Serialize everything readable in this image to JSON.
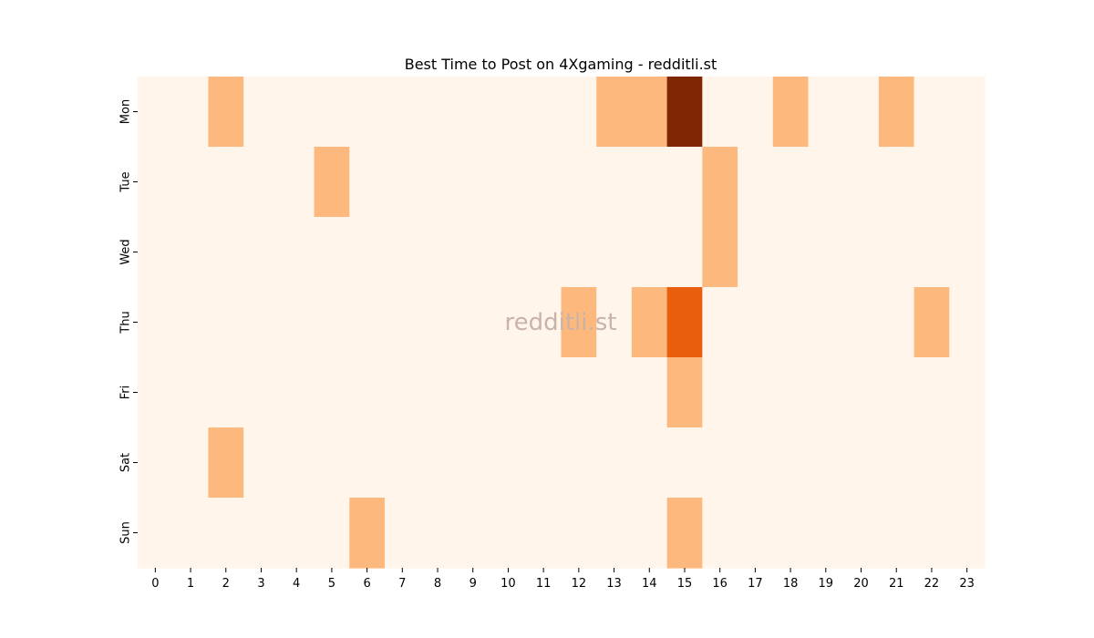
{
  "chart_data": {
    "type": "heatmap",
    "title": "Best Time to Post on 4Xgaming - redditli.st",
    "xlabel": "",
    "ylabel": "",
    "x_categories": [
      "0",
      "1",
      "2",
      "3",
      "4",
      "5",
      "6",
      "7",
      "8",
      "9",
      "10",
      "11",
      "12",
      "13",
      "14",
      "15",
      "16",
      "17",
      "18",
      "19",
      "20",
      "21",
      "22",
      "23"
    ],
    "y_categories": [
      "Mon",
      "Tue",
      "Wed",
      "Thu",
      "Fri",
      "Sat",
      "Sun"
    ],
    "values": [
      [
        0,
        0,
        1,
        0,
        0,
        0,
        0,
        0,
        0,
        0,
        0,
        0,
        0,
        1,
        1,
        4,
        0,
        0,
        1,
        0,
        0,
        1,
        0,
        0
      ],
      [
        0,
        0,
        0,
        0,
        0,
        1,
        0,
        0,
        0,
        0,
        0,
        0,
        0,
        0,
        0,
        0,
        1,
        0,
        0,
        0,
        0,
        0,
        0,
        0
      ],
      [
        0,
        0,
        0,
        0,
        0,
        0,
        0,
        0,
        0,
        0,
        0,
        0,
        0,
        0,
        0,
        0,
        1,
        0,
        0,
        0,
        0,
        0,
        0,
        0
      ],
      [
        0,
        0,
        0,
        0,
        0,
        0,
        0,
        0,
        0,
        0,
        0,
        0,
        1,
        0,
        1,
        2,
        0,
        0,
        0,
        0,
        0,
        0,
        1,
        0
      ],
      [
        0,
        0,
        0,
        0,
        0,
        0,
        0,
        0,
        0,
        0,
        0,
        0,
        0,
        0,
        0,
        1,
        0,
        0,
        0,
        0,
        0,
        0,
        0,
        0
      ],
      [
        0,
        0,
        1,
        0,
        0,
        0,
        0,
        0,
        0,
        0,
        0,
        0,
        0,
        0,
        0,
        0,
        0,
        0,
        0,
        0,
        0,
        0,
        0,
        0
      ],
      [
        0,
        0,
        0,
        0,
        0,
        0,
        1,
        0,
        0,
        0,
        0,
        0,
        0,
        0,
        0,
        1,
        0,
        0,
        0,
        0,
        0,
        0,
        0,
        0
      ]
    ],
    "colorscale": {
      "0": "#fff5eb",
      "1": "#fdb97d",
      "2": "#e95e0d",
      "4": "#7f2704"
    },
    "colorbar": false,
    "grid": false,
    "watermark": "redditli.st"
  }
}
